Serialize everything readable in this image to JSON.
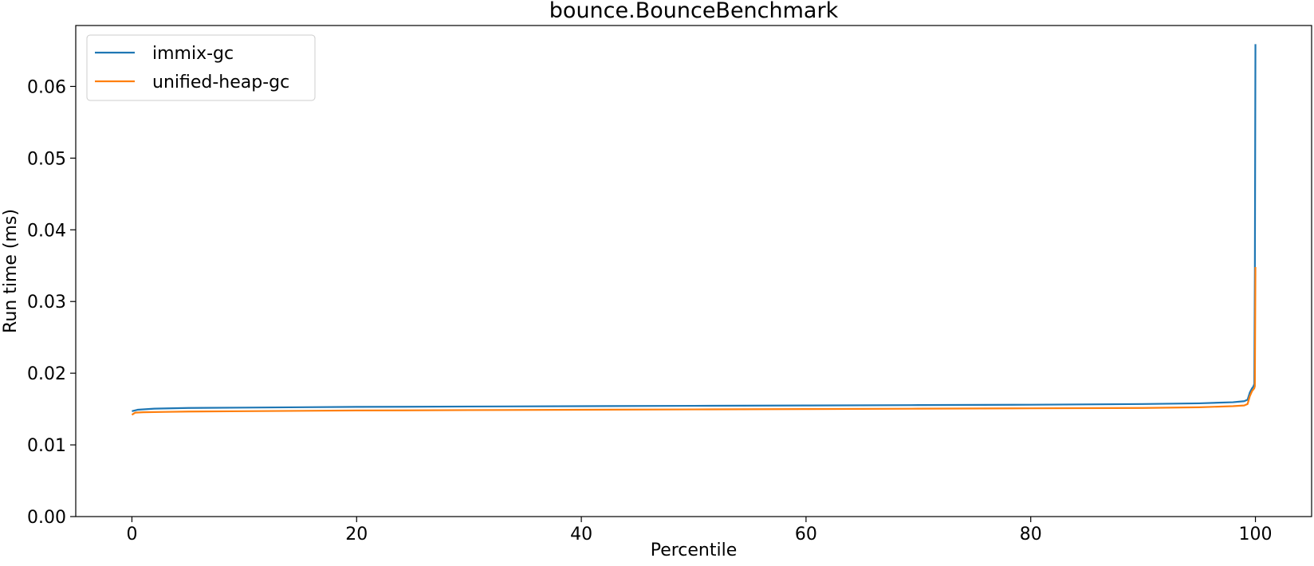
{
  "chart_data": {
    "type": "line",
    "title": "bounce.BounceBenchmark",
    "xlabel": "Percentile",
    "ylabel": "Run time (ms)",
    "xlim": [
      -5,
      105
    ],
    "ylim": [
      0,
      0.0685
    ],
    "xticks": [
      0,
      20,
      40,
      60,
      80,
      100
    ],
    "xtick_labels": [
      "0",
      "20",
      "40",
      "60",
      "80",
      "100"
    ],
    "yticks": [
      0,
      0.01,
      0.02,
      0.03,
      0.04,
      0.05,
      0.06
    ],
    "ytick_labels": [
      "0.00",
      "0.01",
      "0.02",
      "0.03",
      "0.04",
      "0.05",
      "0.06"
    ],
    "grid": false,
    "legend_position": "upper-left",
    "series": [
      {
        "name": "immix-gc",
        "color": "#1f77b4",
        "x": [
          0,
          0.5,
          2,
          5,
          10,
          20,
          30,
          40,
          50,
          60,
          70,
          80,
          90,
          95,
          98,
          99,
          99.3,
          99.5,
          99.7,
          99.8,
          99.9,
          99.95,
          100
        ],
        "y": [
          0.0147,
          0.0149,
          0.01505,
          0.01515,
          0.0152,
          0.0153,
          0.01535,
          0.0154,
          0.01545,
          0.0155,
          0.01555,
          0.0156,
          0.0157,
          0.0158,
          0.01595,
          0.0161,
          0.0163,
          0.0173,
          0.0179,
          0.0181,
          0.0185,
          0.034,
          0.0659
        ]
      },
      {
        "name": "unified-heap-gc",
        "color": "#ff7f0e",
        "x": [
          0,
          0.3,
          1,
          3,
          5,
          10,
          20,
          30,
          40,
          50,
          60,
          70,
          80,
          90,
          95,
          98,
          99,
          99.3,
          99.5,
          99.7,
          99.8,
          99.9,
          99.95,
          100
        ],
        "y": [
          0.0142,
          0.0145,
          0.01455,
          0.0146,
          0.01465,
          0.0147,
          0.0148,
          0.01485,
          0.0149,
          0.01495,
          0.015,
          0.01505,
          0.0151,
          0.01515,
          0.01525,
          0.0154,
          0.0155,
          0.0157,
          0.0168,
          0.0175,
          0.0177,
          0.0179,
          0.0182,
          0.0348
        ]
      }
    ]
  }
}
